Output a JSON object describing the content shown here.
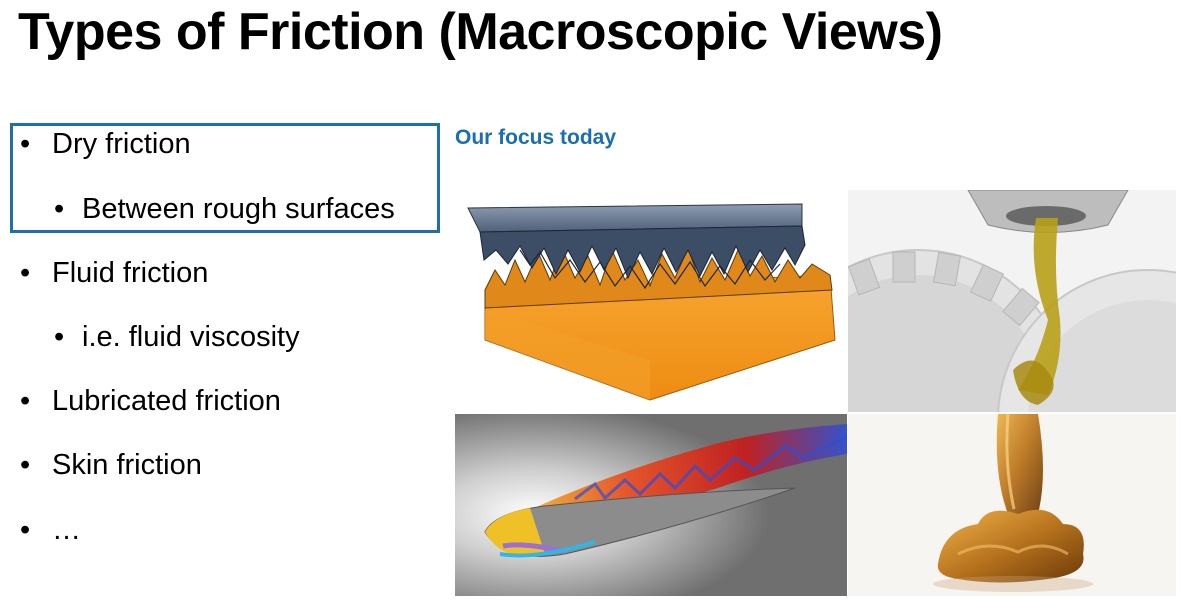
{
  "slide": {
    "title": "Types of Friction (Macroscopic Views)",
    "focus_label": "Our focus today",
    "bullets": [
      {
        "level": 1,
        "text": "Dry friction"
      },
      {
        "level": 2,
        "text": "Between rough surfaces"
      },
      {
        "level": 1,
        "text": "Fluid friction"
      },
      {
        "level": 2,
        "text": "i.e. fluid viscosity"
      },
      {
        "level": 1,
        "text": "Lubricated friction"
      },
      {
        "level": 1,
        "text": "Skin friction"
      },
      {
        "level": 1,
        "text": "…"
      }
    ],
    "bullet_glyph": "•"
  },
  "images": [
    {
      "name": "rough-surfaces-contact-image",
      "colors": {
        "top": "#5f7088",
        "bottom": "#f29a21"
      }
    },
    {
      "name": "oil-on-gears-image",
      "colors": {
        "gear": "#e9e9e9",
        "oil": "#b9a018"
      }
    },
    {
      "name": "airfoil-turbulence-image",
      "colors": {
        "hot": "#e8491a",
        "cold": "#2d4fd6"
      }
    },
    {
      "name": "honey-drip-image",
      "colors": {
        "honey": "#b8741e"
      }
    }
  ],
  "colors": {
    "accent": "#1f6fa8"
  }
}
